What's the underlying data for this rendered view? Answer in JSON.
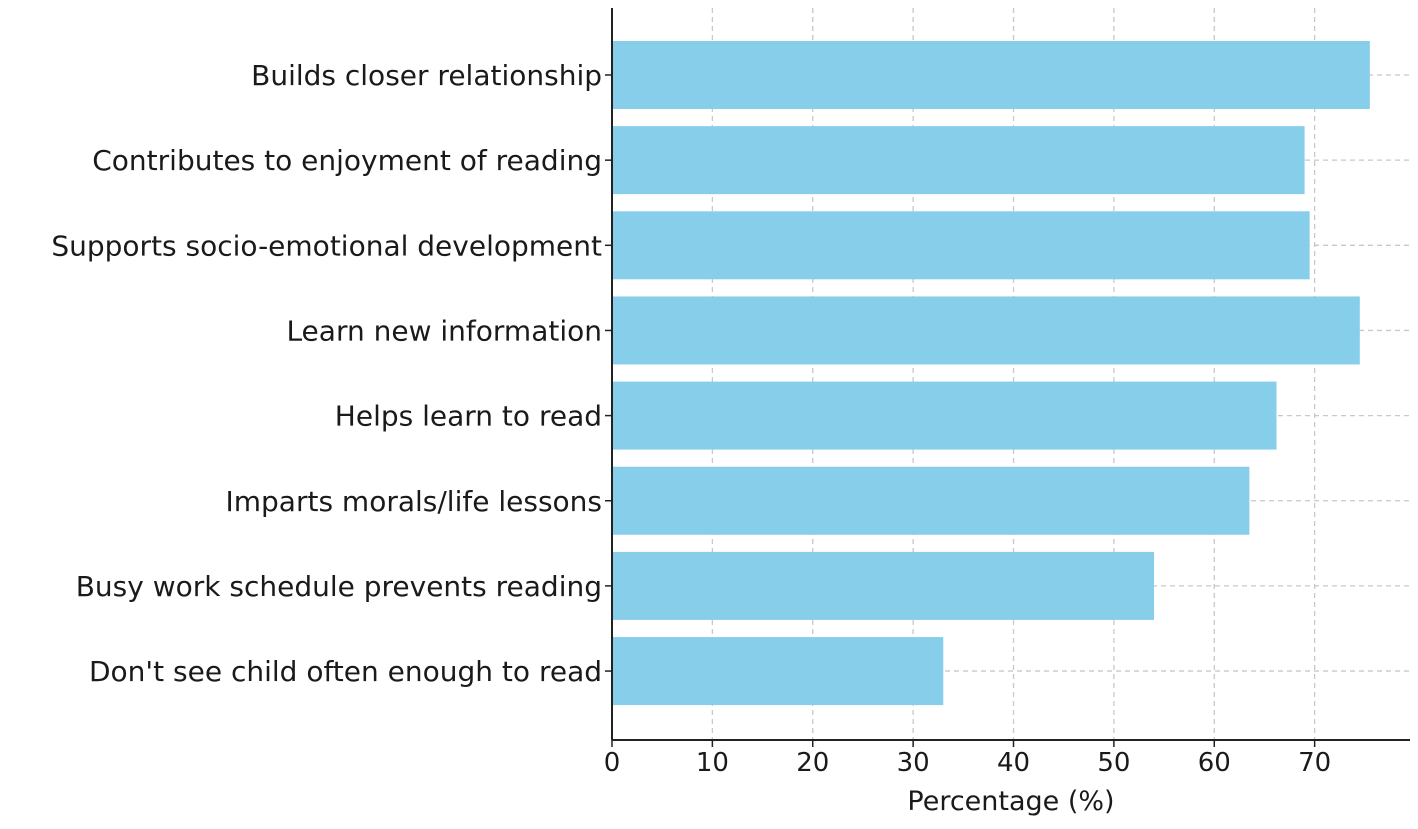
{
  "chart_data": {
    "type": "bar",
    "orientation": "horizontal",
    "categories": [
      "Builds closer relationship",
      "Contributes to enjoyment of reading",
      "Supports socio-emotional development",
      "Learn new information",
      "Helps learn to read",
      "Imparts morals/life lessons",
      "Busy work schedule prevents reading",
      "Don't see child often enough to read"
    ],
    "values": [
      75.5,
      69,
      69.5,
      74.5,
      66.2,
      63.5,
      54,
      33
    ],
    "title": "",
    "xlabel": "Percentage (%)",
    "ylabel": "",
    "xlim": [
      0,
      79.5
    ],
    "xticks": [
      0,
      10,
      20,
      30,
      40,
      50,
      60,
      70
    ],
    "grid": true,
    "bar_color": "#87ceeb"
  }
}
